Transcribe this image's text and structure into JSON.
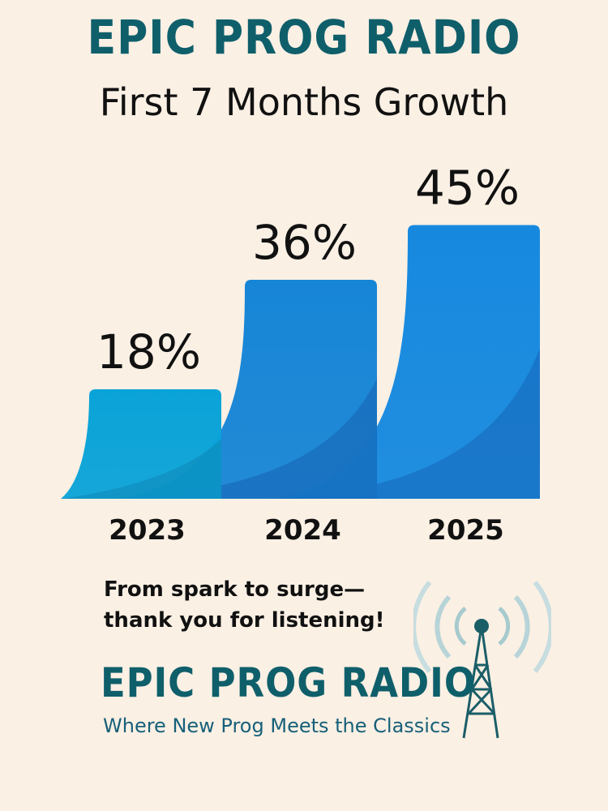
{
  "header": {
    "brand": "EPIC PROG RADIO",
    "subtitle": "First 7 Months Growth"
  },
  "chart_data": {
    "type": "bar",
    "title": "First 7 Months Growth",
    "categories": [
      "2023",
      "2024",
      "2025"
    ],
    "values": [
      18,
      36,
      45
    ],
    "value_labels": [
      "18%",
      "36%",
      "45%"
    ],
    "unit": "%",
    "ylim": [
      0,
      50
    ],
    "grid": false,
    "legend": "none",
    "colors": [
      "#0aa3d8",
      "#1785d6",
      "#1689df"
    ]
  },
  "footer": {
    "tagline_lines": [
      "From spark to surge—",
      "thank you for listening!"
    ],
    "brand": "EPIC PROG RADIO",
    "slogan": "Where New Prog Meets the Classics",
    "logo_icon": "radio-antenna-icon"
  }
}
